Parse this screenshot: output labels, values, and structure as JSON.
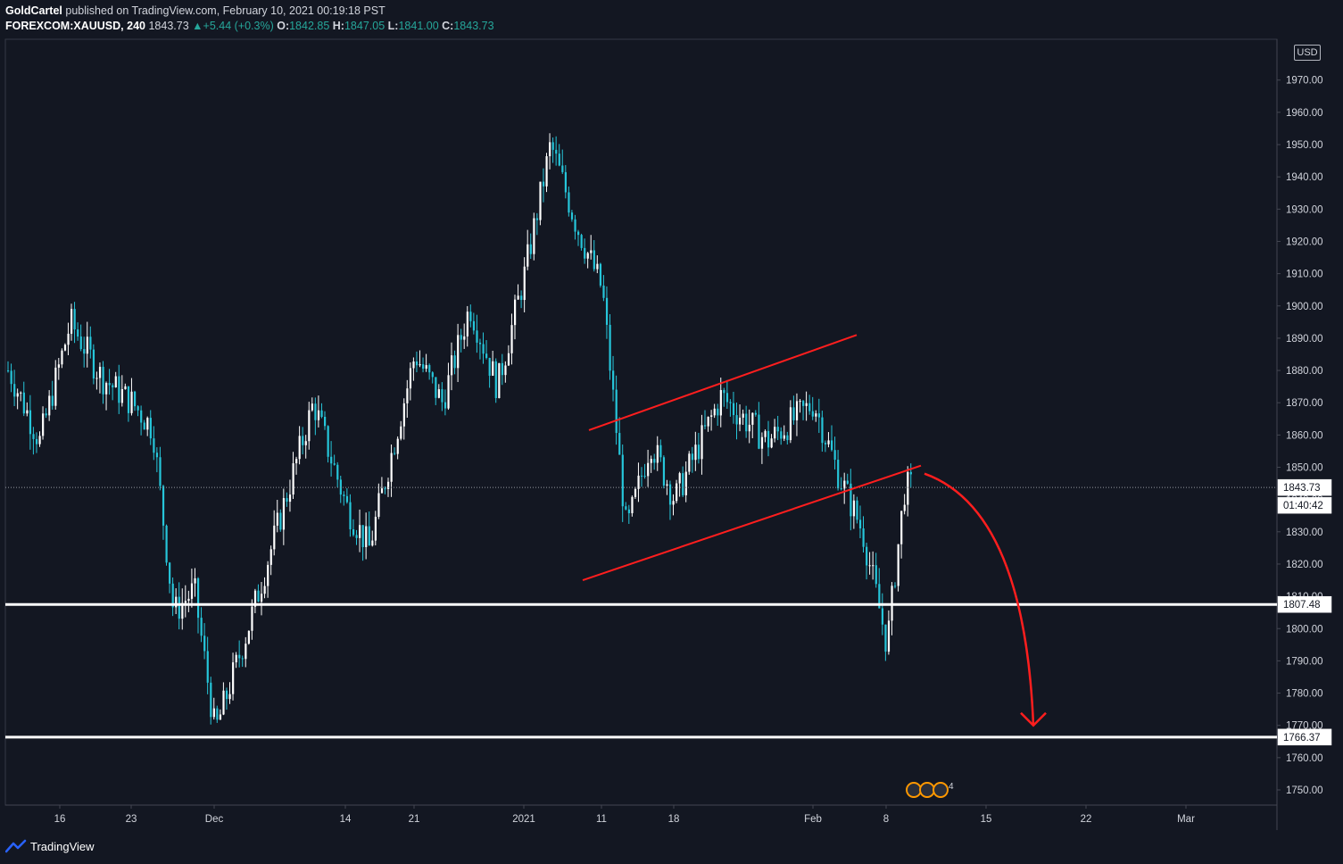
{
  "header": {
    "author": "GoldCartel",
    "published_text": "published on TradingView.com, February 10, 2021 00:19:18 PST",
    "symbol": "FOREXCOM:XAUUSD, 240",
    "last": "1843.73",
    "change": "+5.44 (+0.3%)",
    "o_label": "O:",
    "o_value": "1842.85",
    "h_label": "H:",
    "h_value": "1847.05",
    "l_label": "L:",
    "l_value": "1841.00",
    "c_label": "C:",
    "c_value": "1843.73"
  },
  "currency": "USD",
  "footer": {
    "brand": "TradingView"
  },
  "colors": {
    "background": "#131722",
    "candle_up": "#ffffff",
    "candle_down": "#26c6da",
    "trendline": "#ff1e1e",
    "level_line": "#ffffff",
    "axis_text": "#d1d4dc"
  },
  "chart_data": {
    "type": "candlestick",
    "ylim": [
      1745,
      1980
    ],
    "y_ticks": [
      "1750.00",
      "1760.00",
      "1770.00",
      "1780.00",
      "1790.00",
      "1800.00",
      "1810.00",
      "1820.00",
      "1830.00",
      "1840.00",
      "1850.00",
      "1860.00",
      "1870.00",
      "1880.00",
      "1890.00",
      "1900.00",
      "1910.00",
      "1920.00",
      "1930.00",
      "1940.00",
      "1950.00",
      "1960.00",
      "1970.00"
    ],
    "x_ticks": [
      "16",
      "23",
      "Dec",
      "14",
      "21",
      "2021",
      "11",
      "18",
      "Feb",
      "8",
      "15",
      "22",
      "Mar"
    ],
    "price_path": [
      [
        "16",
        1880
      ],
      [
        "16",
        1858
      ],
      [
        "16",
        1895
      ],
      [
        "16",
        1878
      ],
      [
        "23",
        1870
      ],
      [
        "23",
        1862
      ],
      [
        "23",
        1805
      ],
      [
        "23",
        1812
      ],
      [
        "Dec",
        1768
      ],
      [
        "Dec",
        1800
      ],
      [
        "Dec",
        1835
      ],
      [
        "Dec",
        1870
      ],
      [
        "14",
        1838
      ],
      [
        "14",
        1825
      ],
      [
        "14",
        1855
      ],
      [
        "21",
        1885
      ],
      [
        "21",
        1870
      ],
      [
        "21",
        1900
      ],
      [
        "21",
        1875
      ],
      [
        "2021",
        1910
      ],
      [
        "2021",
        1950
      ],
      [
        "2021",
        1925
      ],
      [
        "11",
        1905
      ],
      [
        "11",
        1830
      ],
      [
        "11",
        1858
      ],
      [
        "18",
        1840
      ],
      [
        "18",
        1872
      ],
      [
        "18",
        1858
      ],
      [
        "Feb",
        1870
      ],
      [
        "Feb",
        1848
      ],
      [
        "Feb",
        1830
      ],
      [
        "8",
        1795
      ],
      [
        "8",
        1820
      ],
      [
        "8",
        1843.73
      ]
    ],
    "levels": [
      {
        "price": 1807.48,
        "label": "1807.48"
      },
      {
        "price": 1766.37,
        "label": "1766.37"
      }
    ],
    "last_price": {
      "price": 1843.73,
      "label": "1843.73",
      "countdown": "01:40:42"
    },
    "channel": {
      "upper": [
        [
          "11",
          1861.5
        ],
        [
          "Feb",
          1891
        ]
      ],
      "lower": [
        [
          "11",
          1815
        ],
        [
          "8",
          1850.5
        ]
      ]
    },
    "projection": {
      "from": [
        "8",
        1848
      ],
      "to": [
        "15",
        1770
      ]
    },
    "event_badges": [
      "8",
      "3",
      "4"
    ]
  }
}
